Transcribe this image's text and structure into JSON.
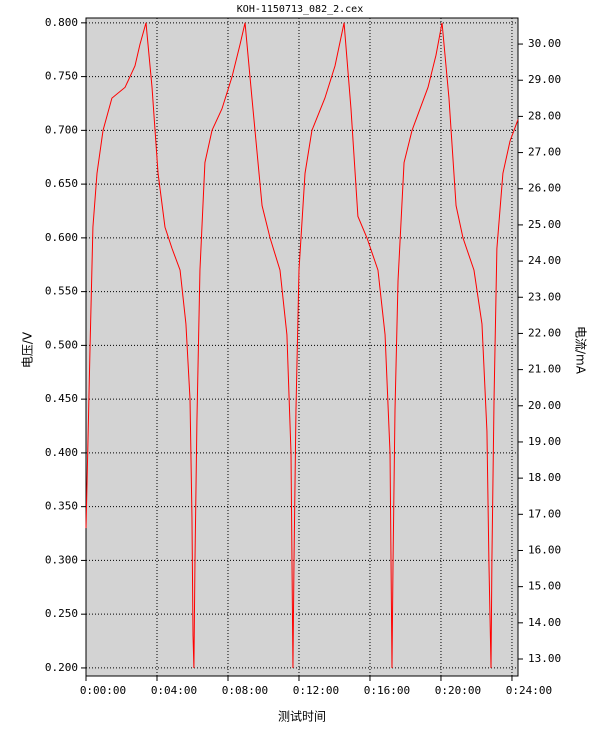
{
  "chart_data": {
    "type": "line",
    "title": "KOH-1150713_082_2.cex",
    "x_label": "测试时间",
    "y_label": "电压/V",
    "y2_label": "电流/mA",
    "grid": true,
    "xlim": [
      0,
      24.34
    ],
    "xticks": [
      {
        "value": 0,
        "label": "0:00:00"
      },
      {
        "value": 4,
        "label": "0:04:00"
      },
      {
        "value": 8,
        "label": "0:08:00"
      },
      {
        "value": 12,
        "label": "0:12:00"
      },
      {
        "value": 16,
        "label": "0:16:00"
      },
      {
        "value": 20,
        "label": "0:20:00"
      },
      {
        "value": 24,
        "label": "0:24:00"
      }
    ],
    "ylim": [
      0.1925,
      0.8045
    ],
    "yticks": [
      {
        "value": 0.2,
        "label": "0.200"
      },
      {
        "value": 0.25,
        "label": "0.250"
      },
      {
        "value": 0.3,
        "label": "0.300"
      },
      {
        "value": 0.35,
        "label": "0.350"
      },
      {
        "value": 0.4,
        "label": "0.400"
      },
      {
        "value": 0.45,
        "label": "0.450"
      },
      {
        "value": 0.5,
        "label": "0.500"
      },
      {
        "value": 0.55,
        "label": "0.550"
      },
      {
        "value": 0.6,
        "label": "0.600"
      },
      {
        "value": 0.65,
        "label": "0.650"
      },
      {
        "value": 0.7,
        "label": "0.700"
      },
      {
        "value": 0.75,
        "label": "0.750"
      },
      {
        "value": 0.8,
        "label": "0.800"
      }
    ],
    "y2lim": [
      12.53,
      30.72
    ],
    "y2ticks": [
      {
        "value": 13,
        "label": "13.00"
      },
      {
        "value": 14,
        "label": "14.00"
      },
      {
        "value": 15,
        "label": "15.00"
      },
      {
        "value": 16,
        "label": "16.00"
      },
      {
        "value": 17,
        "label": "17.00"
      },
      {
        "value": 18,
        "label": "18.00"
      },
      {
        "value": 19,
        "label": "19.00"
      },
      {
        "value": 20,
        "label": "20.00"
      },
      {
        "value": 21,
        "label": "21.00"
      },
      {
        "value": 22,
        "label": "22.00"
      },
      {
        "value": 23,
        "label": "23.00"
      },
      {
        "value": 24,
        "label": "24.00"
      },
      {
        "value": 25,
        "label": "25.00"
      },
      {
        "value": 26,
        "label": "26.00"
      },
      {
        "value": 27,
        "label": "27.00"
      },
      {
        "value": 28,
        "label": "28.00"
      },
      {
        "value": 29,
        "label": "29.00"
      },
      {
        "value": 30,
        "label": "30.00"
      }
    ],
    "x": [
      0.0,
      0.11,
      0.23,
      0.39,
      0.62,
      0.96,
      1.46,
      2.2,
      2.76,
      3.04,
      3.38,
      3.72,
      4.06,
      4.45,
      4.85,
      5.3,
      5.63,
      5.86,
      5.97,
      6.03,
      6.08,
      6.14,
      6.25,
      6.42,
      6.7,
      7.1,
      7.66,
      8.23,
      8.68,
      8.96,
      9.35,
      9.92,
      10.37,
      10.93,
      11.32,
      11.55,
      11.66,
      11.72,
      11.83,
      12.0,
      12.34,
      12.73,
      13.46,
      14.03,
      14.54,
      14.93,
      15.32,
      15.83,
      16.45,
      16.85,
      17.13,
      17.24,
      17.3,
      17.41,
      17.58,
      17.92,
      18.37,
      19.27,
      19.72,
      20.06,
      20.45,
      20.85,
      21.24,
      21.86,
      22.31,
      22.59,
      22.7,
      22.82,
      22.87,
      22.99,
      23.15,
      23.49,
      23.89,
      24.34
    ],
    "series": [
      {
        "color": "#ff0000",
        "values": [
          0.33,
          0.41,
          0.5,
          0.61,
          0.66,
          0.7,
          0.73,
          0.74,
          0.76,
          0.78,
          0.8,
          0.74,
          0.66,
          0.61,
          0.59,
          0.57,
          0.52,
          0.45,
          0.34,
          0.23,
          0.2,
          0.3,
          0.43,
          0.57,
          0.67,
          0.7,
          0.72,
          0.75,
          0.78,
          0.8,
          0.73,
          0.63,
          0.6,
          0.57,
          0.51,
          0.4,
          0.2,
          0.3,
          0.44,
          0.57,
          0.66,
          0.7,
          0.73,
          0.76,
          0.8,
          0.72,
          0.62,
          0.6,
          0.57,
          0.51,
          0.4,
          0.2,
          0.3,
          0.44,
          0.56,
          0.67,
          0.7,
          0.74,
          0.77,
          0.8,
          0.73,
          0.63,
          0.6,
          0.57,
          0.52,
          0.42,
          0.3,
          0.2,
          0.3,
          0.45,
          0.59,
          0.66,
          0.69,
          0.71
        ]
      }
    ]
  }
}
